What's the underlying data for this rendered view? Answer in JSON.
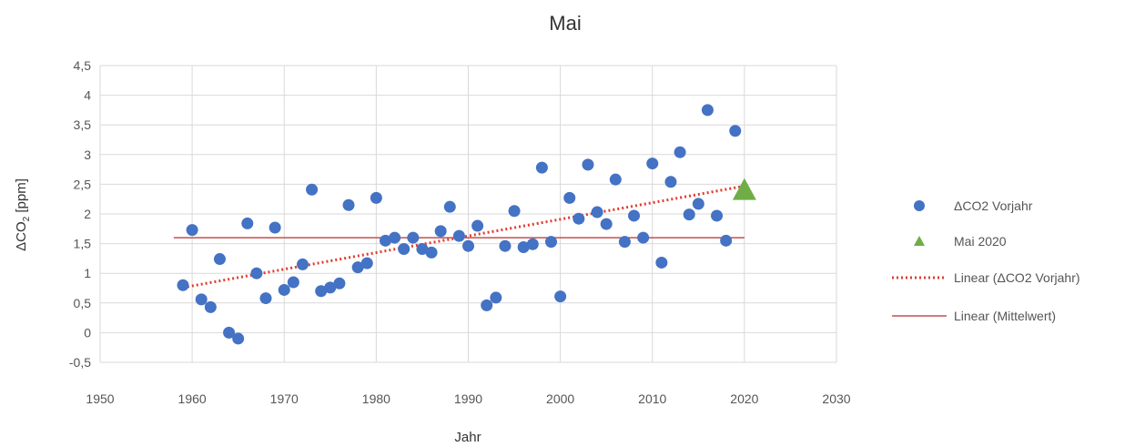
{
  "chart_data": {
    "type": "scatter",
    "title": "Mai",
    "xlabel": "Jahr",
    "ylabel_main": "ΔCO",
    "ylabel_sub": "2",
    "ylabel_unit": " [ppm]",
    "xlim": [
      1950,
      2030
    ],
    "ylim": [
      -0.5,
      4.5
    ],
    "x_ticks": [
      1950,
      1960,
      1970,
      1980,
      1990,
      2000,
      2010,
      2020,
      2030
    ],
    "x_tick_labels": [
      "1950",
      "1960",
      "1970",
      "1980",
      "1990",
      "2000",
      "2010",
      "2020",
      "2030"
    ],
    "y_ticks": [
      -0.5,
      0,
      0.5,
      1,
      1.5,
      2,
      2.5,
      3,
      3.5,
      4,
      4.5
    ],
    "y_tick_labels": [
      "-0,5",
      "0",
      "0,5",
      "1",
      "1,5",
      "2",
      "2,5",
      "3",
      "3,5",
      "4",
      "4,5"
    ],
    "grid": true,
    "legend_position": "right",
    "series": [
      {
        "name": "ΔCO2 Vorjahr",
        "marker": "circle",
        "color": "#4472C4",
        "points": [
          [
            1959,
            0.8
          ],
          [
            1960,
            1.73
          ],
          [
            1961,
            0.56
          ],
          [
            1962,
            0.43
          ],
          [
            1963,
            1.24
          ],
          [
            1964,
            0.0
          ],
          [
            1965,
            -0.1
          ],
          [
            1966,
            1.84
          ],
          [
            1967,
            1.0
          ],
          [
            1968,
            0.58
          ],
          [
            1969,
            1.77
          ],
          [
            1970,
            0.72
          ],
          [
            1971,
            0.85
          ],
          [
            1972,
            1.15
          ],
          [
            1973,
            2.41
          ],
          [
            1974,
            0.7
          ],
          [
            1975,
            0.76
          ],
          [
            1976,
            0.83
          ],
          [
            1977,
            2.15
          ],
          [
            1978,
            1.1
          ],
          [
            1979,
            1.17
          ],
          [
            1980,
            2.27
          ],
          [
            1981,
            1.55
          ],
          [
            1982,
            1.6
          ],
          [
            1983,
            1.41
          ],
          [
            1984,
            1.6
          ],
          [
            1985,
            1.41
          ],
          [
            1986,
            1.35
          ],
          [
            1987,
            1.71
          ],
          [
            1988,
            2.12
          ],
          [
            1989,
            1.63
          ],
          [
            1990,
            1.46
          ],
          [
            1991,
            1.8
          ],
          [
            1992,
            0.46
          ],
          [
            1993,
            0.59
          ],
          [
            1994,
            1.46
          ],
          [
            1995,
            2.05
          ],
          [
            1996,
            1.44
          ],
          [
            1997,
            1.49
          ],
          [
            1998,
            2.78
          ],
          [
            1999,
            1.53
          ],
          [
            2000,
            0.61
          ],
          [
            2001,
            2.27
          ],
          [
            2002,
            1.92
          ],
          [
            2003,
            2.83
          ],
          [
            2004,
            2.03
          ],
          [
            2005,
            1.83
          ],
          [
            2006,
            2.58
          ],
          [
            2007,
            1.53
          ],
          [
            2008,
            1.97
          ],
          [
            2009,
            1.6
          ],
          [
            2010,
            2.85
          ],
          [
            2011,
            1.18
          ],
          [
            2012,
            2.54
          ],
          [
            2013,
            3.04
          ],
          [
            2014,
            1.99
          ],
          [
            2015,
            2.17
          ],
          [
            2016,
            3.75
          ],
          [
            2017,
            1.97
          ],
          [
            2018,
            1.55
          ],
          [
            2019,
            3.4
          ]
        ]
      },
      {
        "name": "Mai 2020",
        "marker": "triangle",
        "color": "#70AD47",
        "points": [
          [
            2020,
            2.42
          ]
        ]
      },
      {
        "name": "Linear (ΔCO2 Vorjahr)",
        "marker": "dotted-line",
        "color": "#E03C31",
        "points": [
          [
            1959,
            0.76
          ],
          [
            2020,
            2.47
          ]
        ]
      },
      {
        "name": "Linear (Mittelwert)",
        "marker": "solid-line",
        "color": "#C0504D",
        "points": [
          [
            1958,
            1.6
          ],
          [
            2020,
            1.6
          ]
        ]
      }
    ]
  }
}
